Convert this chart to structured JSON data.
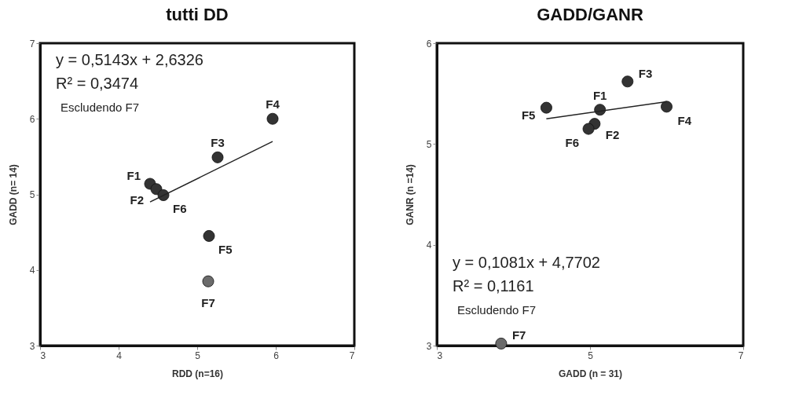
{
  "chart_data": [
    {
      "type": "scatter",
      "title": "tutti DD",
      "xlabel": "RDD (n=16)",
      "ylabel": "GADD (n= 14)",
      "xlim": [
        3,
        7
      ],
      "ylim": [
        3,
        7
      ],
      "xticks": [
        3,
        4,
        5,
        6,
        7
      ],
      "yticks": [
        3,
        4,
        5,
        6,
        7
      ],
      "grid": false,
      "series": [
        {
          "color": "#333333",
          "marker": "circle",
          "x": [
            4.4,
            4.48,
            5.26,
            5.96,
            5.15,
            4.57
          ],
          "values": [
            5.14,
            5.07,
            5.49,
            6.0,
            4.45,
            4.99
          ]
        },
        {
          "color": "#6b6b6b",
          "marker": "circle",
          "x": [
            5.14
          ],
          "values": [
            3.85
          ]
        },
        {
          "type": "line",
          "color": "#222222",
          "marker": "none",
          "x": [
            4.4,
            5.96
          ],
          "values": [
            4.9,
            5.7
          ]
        }
      ],
      "annotations": [
        "y = 0,5143x + 2,6326",
        "R² = 0,3474",
        "Escludendo F7",
        {
          "text": "F1",
          "x": 4.4,
          "y": 5.14
        },
        {
          "text": "F2",
          "x": 4.48,
          "y": 5.07
        },
        {
          "text": "F3",
          "x": 5.26,
          "y": 5.49
        },
        {
          "text": "F4",
          "x": 5.96,
          "y": 6.0
        },
        {
          "text": "F5",
          "x": 5.15,
          "y": 4.45
        },
        {
          "text": "F6",
          "x": 4.57,
          "y": 4.99
        },
        {
          "text": "F7",
          "x": 5.14,
          "y": 3.85
        }
      ]
    },
    {
      "type": "scatter",
      "title": "GADD/GANR",
      "xlabel": "GADD (n = 31)",
      "ylabel": "GANR (n =14)",
      "xlim": [
        3,
        7
      ],
      "ylim": [
        3,
        6
      ],
      "xticks": [
        3,
        5,
        7
      ],
      "yticks": [
        3,
        4,
        5,
        6
      ],
      "grid": false,
      "series": [
        {
          "color": "#333333",
          "marker": "circle",
          "x": [
            5.13,
            5.06,
            5.49,
            6.0,
            4.43,
            4.98
          ],
          "values": [
            5.34,
            5.2,
            5.62,
            5.37,
            5.36,
            5.15
          ]
        },
        {
          "color": "#6b6b6b",
          "marker": "circle",
          "x": [
            3.84
          ],
          "values": [
            3.02
          ]
        },
        {
          "type": "line",
          "color": "#222222",
          "marker": "none",
          "x": [
            4.43,
            6.0
          ],
          "values": [
            5.25,
            5.42
          ]
        }
      ],
      "annotations": [
        "y = 0,1081x + 4,7702",
        "R² = 0,1161",
        "Escludendo F7",
        {
          "text": "F1",
          "x": 5.13,
          "y": 5.34
        },
        {
          "text": "F2",
          "x": 5.06,
          "y": 5.2
        },
        {
          "text": "F3",
          "x": 5.49,
          "y": 5.62
        },
        {
          "text": "F4",
          "x": 6.0,
          "y": 5.37
        },
        {
          "text": "F5",
          "x": 4.43,
          "y": 5.36
        },
        {
          "text": "F6",
          "x": 4.98,
          "y": 5.15
        },
        {
          "text": "F7",
          "x": 3.84,
          "y": 3.02
        }
      ]
    }
  ]
}
